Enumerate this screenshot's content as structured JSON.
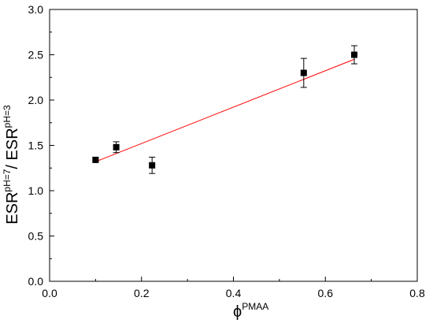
{
  "chart_data": {
    "type": "scatter",
    "xlim": [
      0.0,
      0.8
    ],
    "ylim": [
      0.0,
      3.0
    ],
    "x_ticks": [
      "0.0",
      "0.2",
      "0.4",
      "0.6",
      "0.8"
    ],
    "y_ticks": [
      "0.0",
      "0.5",
      "1.0",
      "1.5",
      "2.0",
      "2.5",
      "3.0"
    ],
    "x_tick_values": [
      0.0,
      0.2,
      0.4,
      0.6,
      0.8
    ],
    "y_tick_values": [
      0.0,
      0.5,
      1.0,
      1.5,
      2.0,
      2.5,
      3.0
    ],
    "xlabel": {
      "base": "ϕ",
      "sup": "PMAA"
    },
    "ylabel": {
      "base1": "ESR",
      "sup1": "pH=7",
      "sep": "/ ",
      "base2": "ESR",
      "sup2": "pH=3"
    },
    "grid": false,
    "points": [
      {
        "x": 0.1,
        "y": 1.34,
        "err": 0.02
      },
      {
        "x": 0.145,
        "y": 1.48,
        "err": 0.06
      },
      {
        "x": 0.223,
        "y": 1.28,
        "err": 0.09
      },
      {
        "x": 0.553,
        "y": 2.3,
        "err": 0.16
      },
      {
        "x": 0.663,
        "y": 2.5,
        "err": 0.1
      }
    ],
    "fit_line": {
      "x": [
        0.1,
        0.663
      ],
      "y": [
        1.32,
        2.45
      ]
    },
    "colors": {
      "points": "#000000",
      "fit": "#ff0000",
      "axis": "#000000"
    }
  }
}
